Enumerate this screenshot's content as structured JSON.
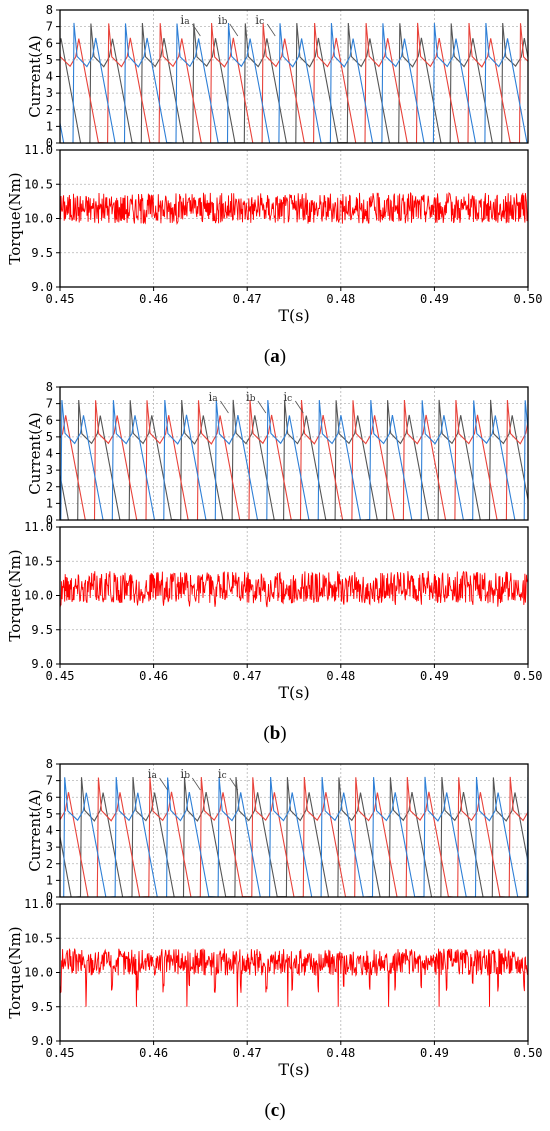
{
  "chart_data": [
    {
      "type": "line",
      "caption": "a",
      "x_axis": {
        "label": "T(s)",
        "range": [
          0.45,
          0.5
        ],
        "ticks": [
          "0.45",
          "0.46",
          "0.47",
          "0.48",
          "0.49",
          "0.50"
        ],
        "grid": true
      },
      "current_panel": {
        "ylabel": "Current(A)",
        "ylim": [
          0,
          8
        ],
        "yticks": [
          "0",
          "1",
          "2",
          "3",
          "4",
          "5",
          "6",
          "7",
          "8"
        ],
        "series_labels": [
          "i",
          "i",
          "i"
        ],
        "series_subscripts": [
          "a",
          "b",
          "c"
        ],
        "series_colors": [
          "#555555",
          "#e8423a",
          "#2e7fd6"
        ],
        "pulse_period_s": 0.0055,
        "pulse_first_s": [
          0.4478,
          0.4497,
          0.4515
        ],
        "peak_a": 7.2,
        "valley_a": 4.6,
        "min_a": 0,
        "label_at_s": [
          0.4635,
          0.4675,
          0.4715
        ]
      },
      "torque_panel": {
        "ylabel": "Torque(Nm)",
        "ylim": [
          9.0,
          11.0
        ],
        "yticks": [
          "9.0",
          "9.5",
          "10.0",
          "10.5",
          "11.0"
        ],
        "color": "#ff0000",
        "mean_nm": 10.15,
        "ripple_nm": [
          9.9,
          10.35
        ],
        "dips_nm": []
      }
    },
    {
      "type": "line",
      "caption": "b",
      "x_axis": {
        "label": "T(s)",
        "range": [
          0.45,
          0.5
        ],
        "ticks": [
          "0.45",
          "0.46",
          "0.47",
          "0.48",
          "0.49",
          "0.50"
        ],
        "grid": true
      },
      "current_panel": {
        "ylabel": "Current(A)",
        "ylim": [
          0,
          8
        ],
        "yticks": [
          "0",
          "1",
          "2",
          "3",
          "4",
          "5",
          "6",
          "7",
          "8"
        ],
        "series_labels": [
          "i",
          "i",
          "i"
        ],
        "series_subscripts": [
          "a",
          "b",
          "c"
        ],
        "series_colors": [
          "#555555",
          "#e8423a",
          "#2e7fd6"
        ],
        "pulse_period_s": 0.0055,
        "pulse_first_s": [
          0.452,
          0.4538,
          0.4557
        ],
        "peak_a": 7.2,
        "valley_a": 4.6,
        "min_a": 0,
        "label_at_s": [
          0.4665,
          0.4705,
          0.4745
        ]
      },
      "torque_panel": {
        "ylabel": "Torque(Nm)",
        "ylim": [
          9.0,
          11.0
        ],
        "yticks": [
          "9.0",
          "9.5",
          "10.0",
          "10.5",
          "11.0"
        ],
        "color": "#ff0000",
        "mean_nm": 10.12,
        "ripple_nm": [
          9.85,
          10.32
        ],
        "dips_nm": [
          9.82
        ]
      }
    },
    {
      "type": "line",
      "caption": "c",
      "x_axis": {
        "label": "T(s)",
        "range": [
          0.45,
          0.5
        ],
        "ticks": [
          "0.45",
          "0.46",
          "0.47",
          "0.48",
          "0.49",
          "0.50"
        ],
        "grid": true
      },
      "current_panel": {
        "ylabel": "Current(A)",
        "ylim": [
          0,
          8
        ],
        "yticks": [
          "0",
          "1",
          "2",
          "3",
          "4",
          "5",
          "6",
          "7",
          "8"
        ],
        "series_labels": [
          "i",
          "i",
          "i"
        ],
        "series_subscripts": [
          "a",
          "b",
          "c"
        ],
        "series_colors": [
          "#555555",
          "#e8423a",
          "#2e7fd6"
        ],
        "pulse_period_s": 0.0055,
        "pulse_first_s": [
          0.4523,
          0.4541,
          0.456
        ],
        "peak_a": 7.2,
        "valley_a": 4.6,
        "min_a": 0,
        "label_at_s": [
          0.46,
          0.4635,
          0.4675
        ]
      },
      "torque_panel": {
        "ylabel": "Torque(Nm)",
        "ylim": [
          9.0,
          11.0
        ],
        "yticks": [
          "9.0",
          "9.5",
          "10.0",
          "10.5",
          "11.0"
        ],
        "color": "#ff0000",
        "mean_nm": 10.15,
        "ripple_nm": [
          9.95,
          10.35
        ],
        "dips_nm": [
          9.7,
          9.5
        ]
      }
    }
  ]
}
